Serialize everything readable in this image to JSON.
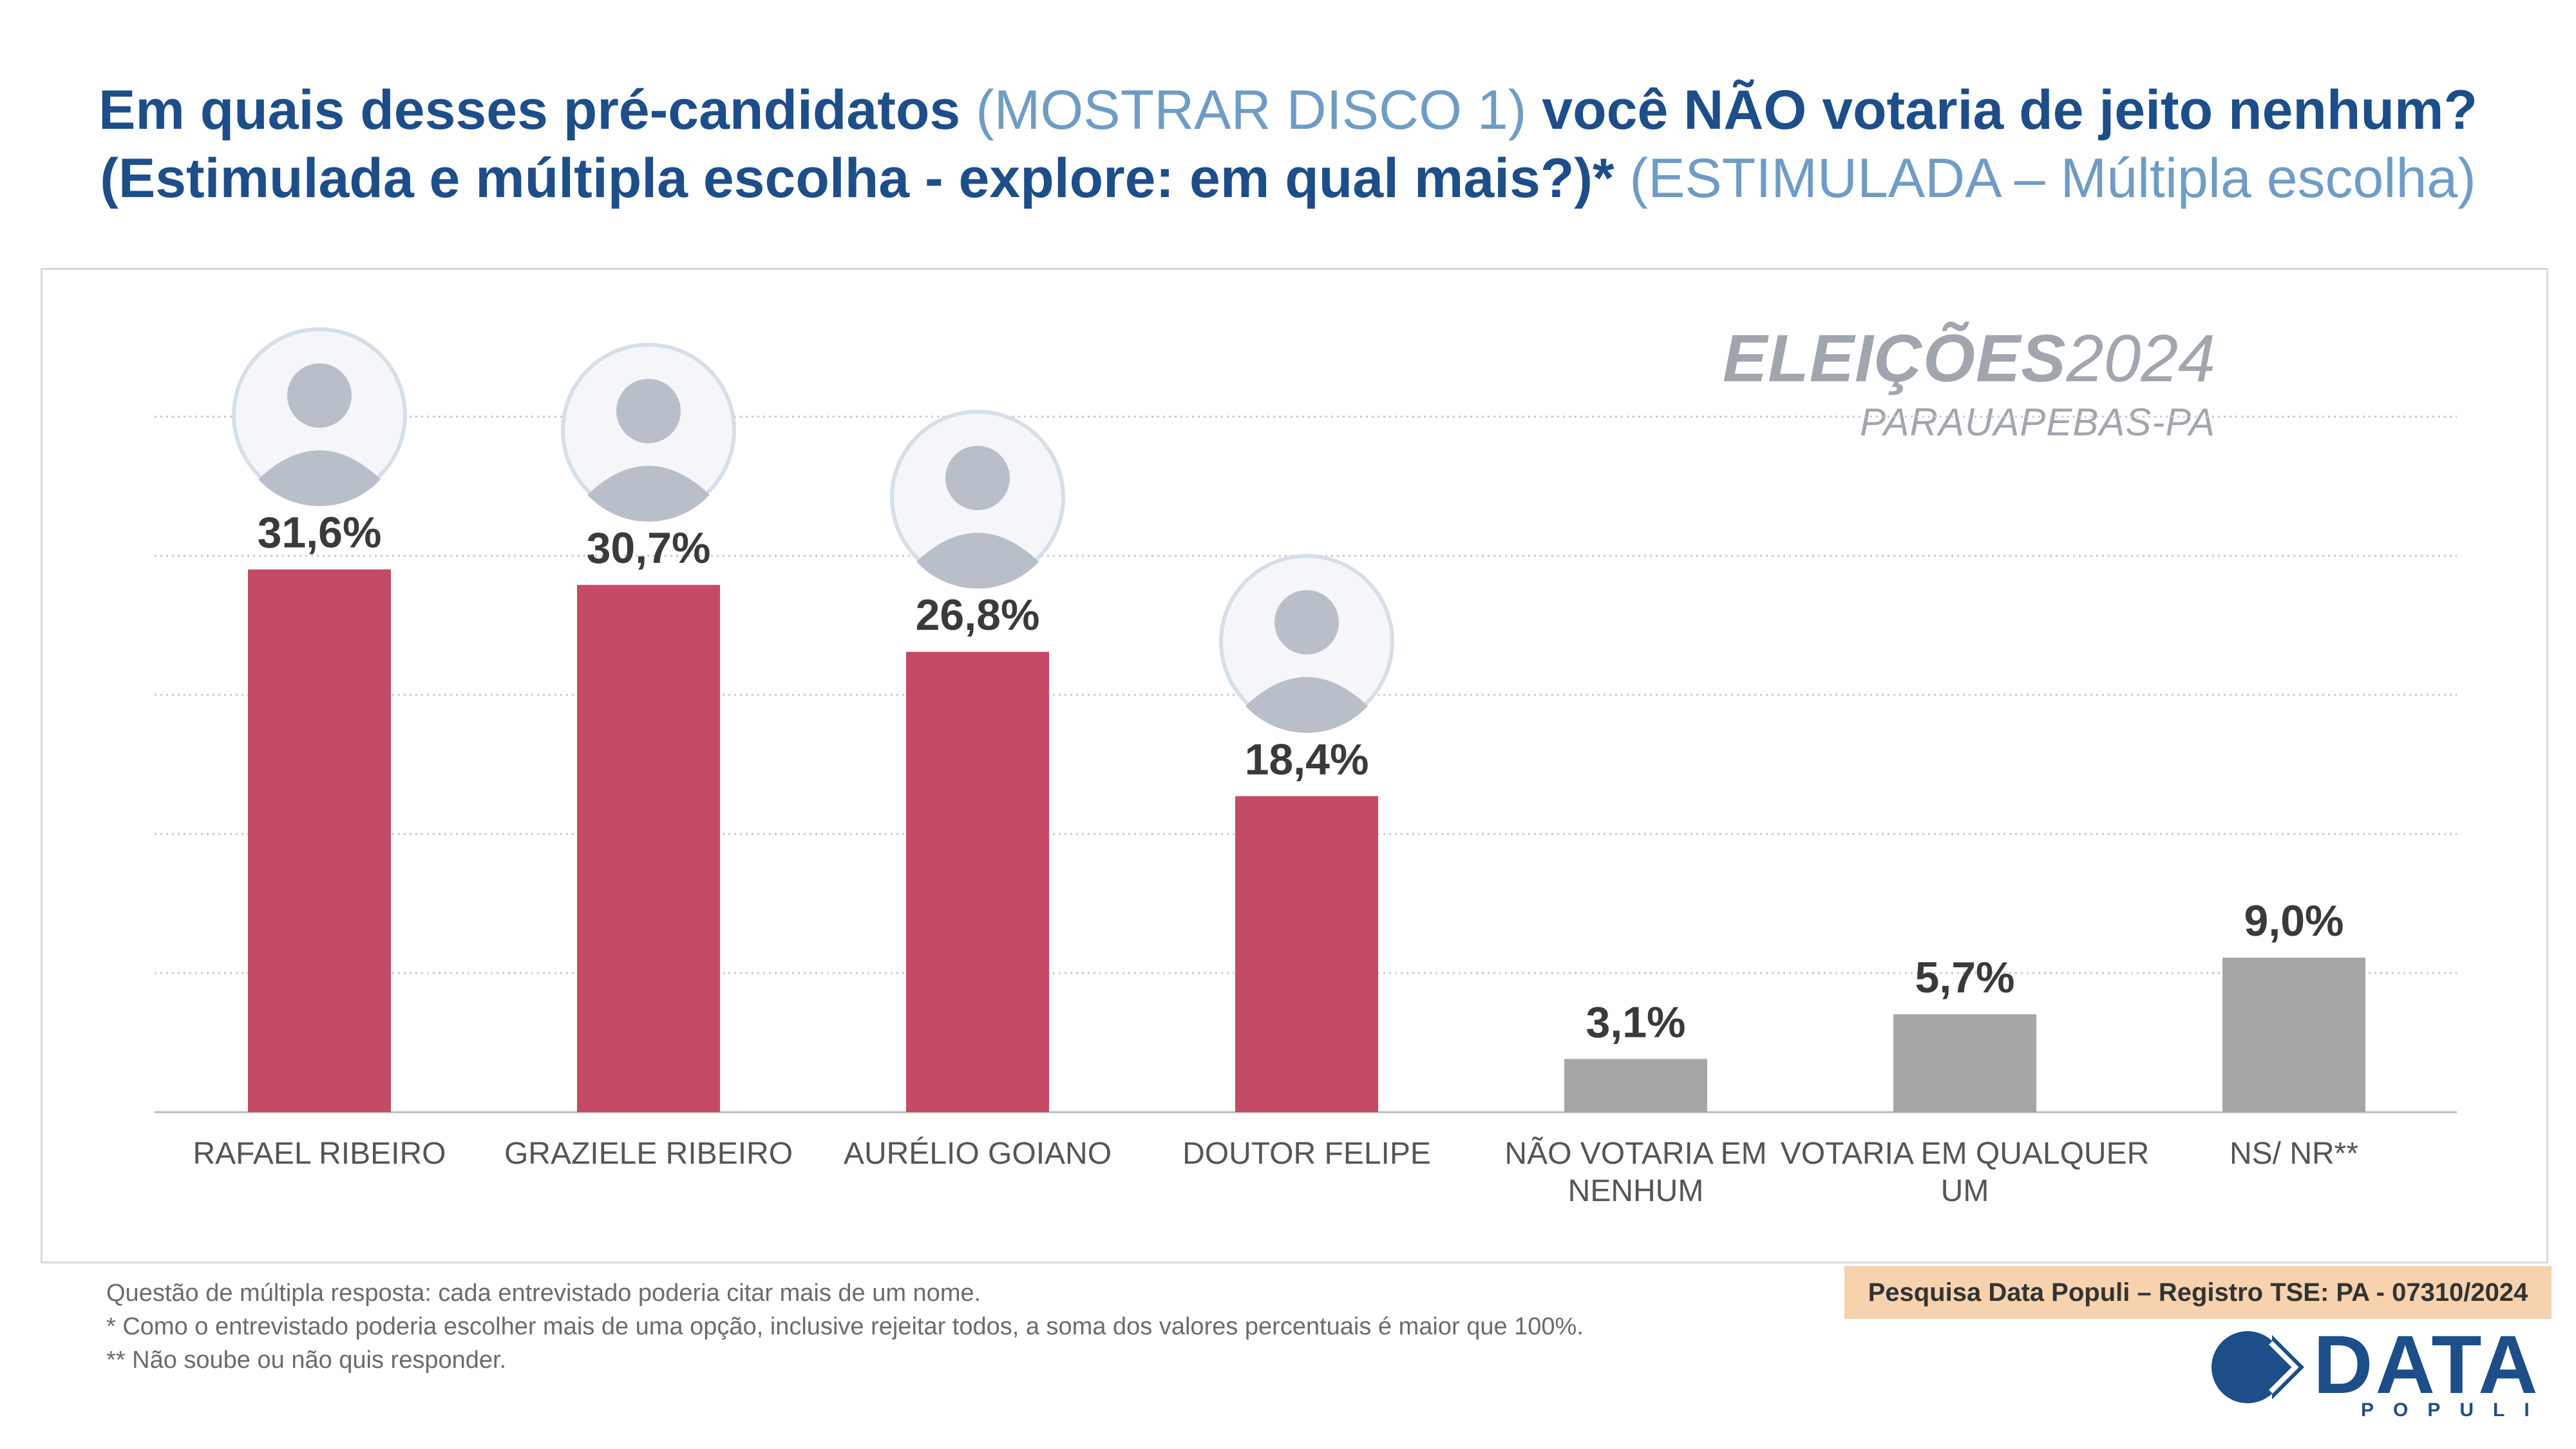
{
  "title": {
    "line1_b1": "Em quais desses pré-candidatos",
    "line1_l1": " (MOSTRAR DISCO 1) ",
    "line1_b2": "você NÃO votaria de jeito nenhum?",
    "line2_b": "(Estimulada e múltipla escolha - explore: em qual mais?)*",
    "line2_l": " (ESTIMULADA – Múltipla escolha)"
  },
  "brand": {
    "eleicoes": "ELEIÇÕES",
    "year": "2024",
    "city": "PARAUAPEBAS-PA"
  },
  "chart_data": {
    "type": "bar",
    "title": "Em quais desses pré-candidatos você NÃO votaria de jeito nenhum?",
    "xlabel": "",
    "ylabel": "",
    "ylim": [
      0,
      40
    ],
    "grid": true,
    "categories": [
      "RAFAEL RIBEIRO",
      "GRAZIELE RIBEIRO",
      "AURÉLIO GOIANO",
      "DOUTOR FELIPE",
      "NÃO VOTARIA EM NENHUM",
      "VOTARIA EM QUALQUER UM",
      "NS/ NR**"
    ],
    "values": [
      31.6,
      30.7,
      26.8,
      18.4,
      3.1,
      5.7,
      9.0
    ],
    "value_labels": [
      "31,6%",
      "30,7%",
      "26,8%",
      "18,4%",
      "3,1%",
      "5,7%",
      "9,0%"
    ],
    "bar_colors": [
      "#c44a66",
      "#c44a66",
      "#c44a66",
      "#c44a66",
      "#a6a6a6",
      "#a6a6a6",
      "#a6a6a6"
    ],
    "has_photo": [
      true,
      true,
      true,
      true,
      false,
      false,
      false
    ]
  },
  "notes": {
    "n1": "Questão de múltipla resposta: cada entrevistado poderia citar mais de um nome.",
    "n2": "*  Como o entrevistado poderia escolher mais de uma opção, inclusive rejeitar todos, a soma dos valores percentuais é maior que 100%.",
    "n3": "** Não soube ou não quis responder."
  },
  "registro": "Pesquisa Data Populi – Registro TSE: PA - 07310/2024",
  "logo": {
    "word": "DATA",
    "sub": "POPULI"
  },
  "colors": {
    "title_dark": "#1d4e89",
    "title_light": "#6f9cc6",
    "bar_candidate": "#c44a66",
    "bar_other": "#a6a6a6",
    "registro_bg": "#f6d2ae"
  }
}
